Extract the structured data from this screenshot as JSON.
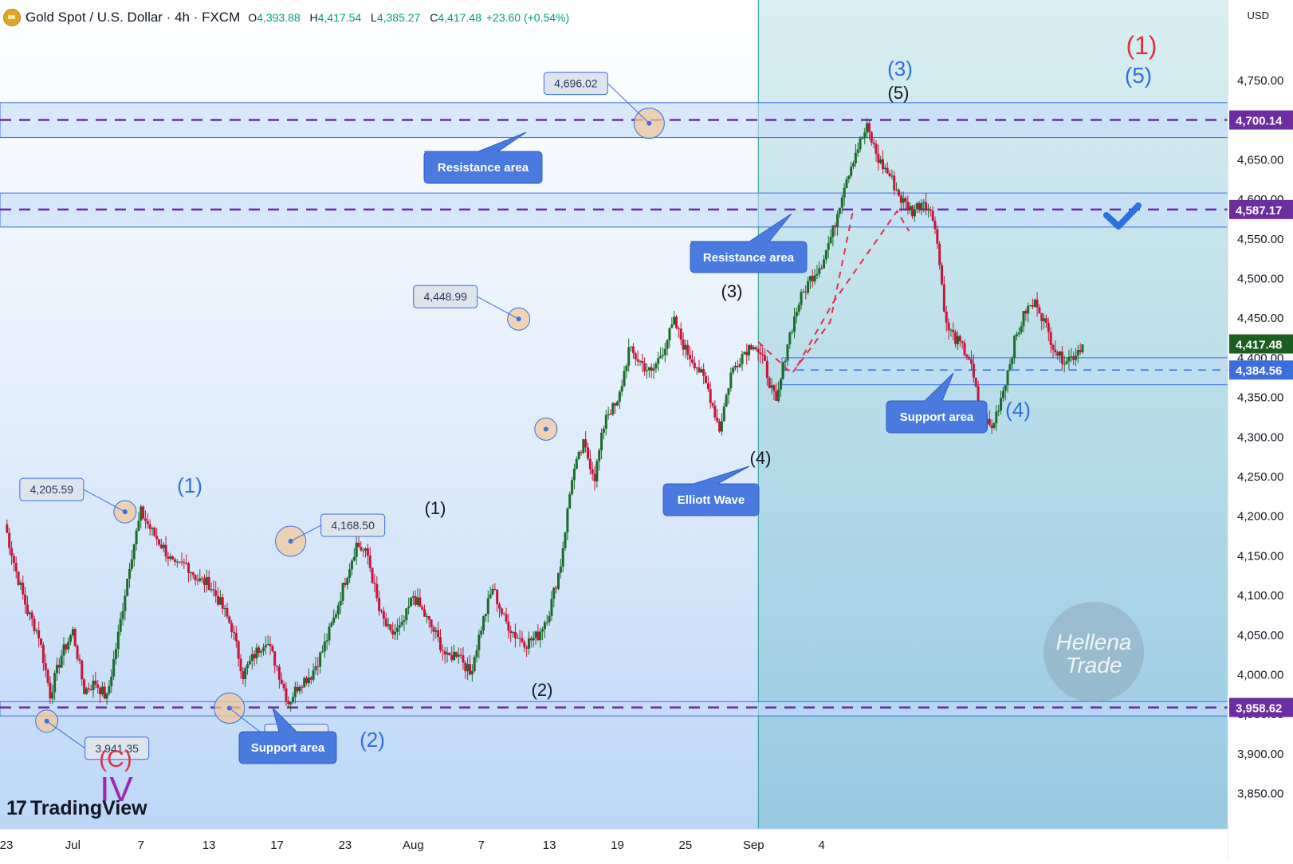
{
  "header": {
    "title": "Gold Spot / U.S. Dollar · 4h · FXCM",
    "o_label": "O",
    "o_value": "4,393.88",
    "h_label": "H",
    "h_value": "4,417.54",
    "l_label": "L",
    "l_value": "4,385.27",
    "c_label": "C",
    "c_value": "4,417.48",
    "change": "+23.60 (+0.54%)"
  },
  "currency": "USD",
  "logo_text": "TradingView",
  "watermark": [
    "Hellena",
    "Trade"
  ],
  "colors": {
    "up": "#1b6b2a",
    "down": "#c4163a",
    "zone": "#c4dcfa",
    "zone_border": "#3c6ee0",
    "dash": "#6a2ea0",
    "label_bg": "#4a7ae0",
    "forecast_bg": "#a8d8dc",
    "accent_blue": "#2f6fe0",
    "accent_red": "#e0304a"
  },
  "chart_data": {
    "type": "candlestick",
    "timeframe": "4h",
    "ylim": [
      3820,
      4810
    ],
    "y_ticks": [
      3850,
      3900,
      3950,
      4000,
      4050,
      4100,
      4150,
      4200,
      4250,
      4300,
      4350,
      4400,
      4450,
      4500,
      4550,
      4600,
      4650,
      4700,
      4750
    ],
    "y_tick_labels": [
      "3,850.00",
      "3,900.00",
      "3,950.00",
      "4,000.00",
      "4,050.00",
      "4,100.00",
      "4,150.00",
      "4,200.00",
      "4,250.00",
      "4,300.00",
      "4,350.00",
      "4,400.00",
      "4,450.00",
      "4,500.00",
      "4,550.00",
      "4,600.00",
      "4,650.00",
      "4,700.00",
      "4,750.00"
    ],
    "x_ticks": [
      {
        "label": "23",
        "idx": 0
      },
      {
        "label": "Jul",
        "idx": 6
      },
      {
        "label": "7",
        "idx": 12
      },
      {
        "label": "13",
        "idx": 18
      },
      {
        "label": "17",
        "idx": 24
      },
      {
        "label": "23",
        "idx": 30
      },
      {
        "label": "Aug",
        "idx": 36
      },
      {
        "label": "7",
        "idx": 42
      },
      {
        "label": "13",
        "idx": 48
      },
      {
        "label": "19",
        "idx": 54
      },
      {
        "label": "25",
        "idx": 60
      },
      {
        "label": "Sep",
        "idx": 66
      },
      {
        "label": "4",
        "idx": 72
      }
    ],
    "forecast_start_idx": 66,
    "forecast_end_idx": 95,
    "anchors": [
      [
        0,
        4190
      ],
      [
        1,
        4130
      ],
      [
        2,
        4080
      ],
      [
        3,
        4050
      ],
      [
        4,
        3975
      ],
      [
        5,
        4025
      ],
      [
        6,
        4055
      ],
      [
        7,
        3980
      ],
      [
        8,
        3990
      ],
      [
        9,
        3970
      ],
      [
        10,
        4050
      ],
      [
        11,
        4140
      ],
      [
        12,
        4205
      ],
      [
        13,
        4180
      ],
      [
        14,
        4160
      ],
      [
        15,
        4135
      ],
      [
        16,
        4140
      ],
      [
        17,
        4120
      ],
      [
        18,
        4115
      ],
      [
        19,
        4090
      ],
      [
        20,
        4060
      ],
      [
        21,
        4000
      ],
      [
        22,
        4025
      ],
      [
        23,
        4045
      ],
      [
        24,
        4010
      ],
      [
        25,
        3965
      ],
      [
        26,
        3990
      ],
      [
        27,
        4000
      ],
      [
        28,
        4030
      ],
      [
        29,
        4070
      ],
      [
        30,
        4120
      ],
      [
        31,
        4165
      ],
      [
        32,
        4150
      ],
      [
        33,
        4080
      ],
      [
        34,
        4050
      ],
      [
        35,
        4060
      ],
      [
        36,
        4100
      ],
      [
        37,
        4075
      ],
      [
        38,
        4050
      ],
      [
        39,
        4020
      ],
      [
        40,
        4030
      ],
      [
        41,
        4000
      ],
      [
        42,
        4060
      ],
      [
        43,
        4110
      ],
      [
        44,
        4070
      ],
      [
        45,
        4050
      ],
      [
        46,
        4040
      ],
      [
        47,
        4050
      ],
      [
        48,
        4080
      ],
      [
        49,
        4140
      ],
      [
        50,
        4250
      ],
      [
        51,
        4290
      ],
      [
        52,
        4250
      ],
      [
        53,
        4330
      ],
      [
        54,
        4340
      ],
      [
        55,
        4410
      ],
      [
        56,
        4395
      ],
      [
        57,
        4380
      ],
      [
        58,
        4410
      ],
      [
        59,
        4445
      ],
      [
        60,
        4410
      ],
      [
        61,
        4390
      ],
      [
        62,
        4360
      ],
      [
        63,
        4310
      ],
      [
        64,
        4380
      ],
      [
        65,
        4405
      ],
      [
        66,
        4420
      ],
      [
        67,
        4390
      ],
      [
        68,
        4340
      ],
      [
        69,
        4420
      ],
      [
        70,
        4470
      ],
      [
        71,
        4500
      ],
      [
        72,
        4520
      ],
      [
        73,
        4560
      ],
      [
        74,
        4620
      ],
      [
        75,
        4660
      ],
      [
        76,
        4690
      ],
      [
        77,
        4650
      ],
      [
        78,
        4630
      ],
      [
        79,
        4600
      ],
      [
        80,
        4585
      ],
      [
        81,
        4600
      ],
      [
        82,
        4570
      ],
      [
        83,
        4440
      ],
      [
        84,
        4420
      ],
      [
        85,
        4400
      ],
      [
        86,
        4330
      ],
      [
        87,
        4310
      ],
      [
        88,
        4360
      ],
      [
        89,
        4420
      ],
      [
        90,
        4460
      ],
      [
        91,
        4470
      ],
      [
        92,
        4430
      ],
      [
        93,
        4400
      ],
      [
        94,
        4400
      ],
      [
        95,
        4417
      ]
    ],
    "horizontal_levels": [
      {
        "price": 4700.14,
        "label": "4,700.14",
        "tag_color": "#6a2ea0"
      },
      {
        "price": 4587.17,
        "label": "4,587.17",
        "tag_color": "#6a2ea0"
      },
      {
        "price": 3958.62,
        "label": "3,958.62",
        "tag_color": "#6a2ea0"
      },
      {
        "price": 4384.56,
        "label": "4,384.56",
        "tag_color": "#3c6ee0"
      },
      {
        "price": 4417.48,
        "label": "4,417.48",
        "tag_color": "#1b5e20"
      }
    ],
    "zones": [
      {
        "top": 4722,
        "bottom": 4678
      },
      {
        "top": 4608,
        "bottom": 4565
      },
      {
        "top": 3966,
        "bottom": 3948
      }
    ],
    "small_zone": {
      "top": 4400,
      "bottom": 4366,
      "x_start_idx": 68.5
    },
    "price_callouts": [
      {
        "text": "4,205.59",
        "price": 4205.59,
        "idx": 10.6
      },
      {
        "text": "3,941.35",
        "price": 3941.35,
        "idx": 3.7
      },
      {
        "text": "3,957.69",
        "price": 3957.69,
        "idx": 19.8
      },
      {
        "text": "4,168.50",
        "price": 4168.5,
        "idx": 25.2
      },
      {
        "text": "4,448.99",
        "price": 4448.99,
        "idx": 45.3
      },
      {
        "text": "4,696.02",
        "price": 4696.02,
        "idx": 56.8
      }
    ],
    "wave_labels": [
      {
        "text": "(1)",
        "color": "#2f6fe0"
      },
      {
        "text": "(2)",
        "color": "#2f6fe0"
      },
      {
        "text": "(1)",
        "color": "#131722"
      },
      {
        "text": "(2)",
        "color": "#131722"
      },
      {
        "text": "(3)",
        "color": "#131722"
      },
      {
        "text": "(4)",
        "color": "#131722"
      },
      {
        "text": "(3)",
        "color": "#2f6fe0"
      },
      {
        "text": "(5)",
        "color": "#131722"
      },
      {
        "text": "(4)",
        "color": "#2f6fe0"
      },
      {
        "text": "(1)",
        "color": "#e0304a"
      },
      {
        "text": "(5)",
        "color": "#2f6fe0"
      },
      {
        "text": "(C)",
        "color": "#e0304a"
      },
      {
        "text": "IV",
        "color": "#9c27b0"
      }
    ],
    "annotations": [
      "Resistance area",
      "Resistance area",
      "Support area",
      "Support area",
      "Elliott Wave"
    ]
  }
}
